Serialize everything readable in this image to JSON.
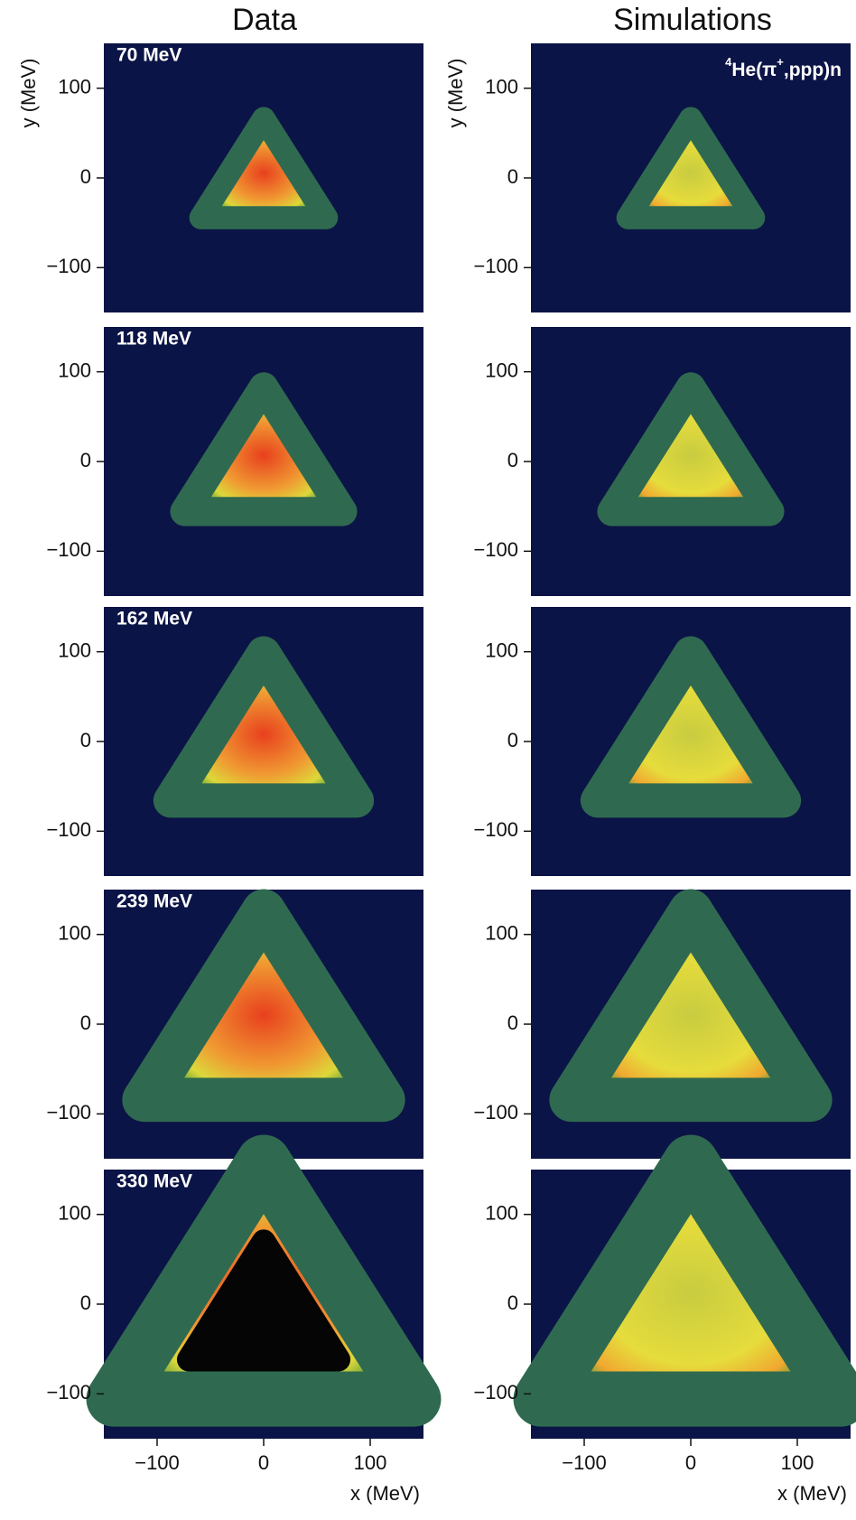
{
  "columns": [
    "Data",
    "Simulations"
  ],
  "chart_data": [
    {
      "type": "heatmap",
      "title": "70 MeV",
      "ylabel": "y (MeV)",
      "xlim": [
        -150,
        150
      ],
      "ylim": [
        -150,
        150
      ],
      "yticks": [
        {
          "value": -100,
          "label": "−100"
        },
        0,
        100
      ]
    },
    {
      "type": "heatmap",
      "annotation": [
        "4",
        "He(π",
        "+",
        ",ppp)n"
      ],
      "ylabel": "y (MeV)",
      "xlim": [
        -150,
        150
      ],
      "ylim": [
        -150,
        150
      ],
      "yticks": [
        {
          "value": -100,
          "label": "−100"
        },
        0,
        100
      ]
    },
    {
      "type": "heatmap",
      "title": "118 MeV",
      "xlim": [
        -150,
        150
      ],
      "ylim": [
        -150,
        150
      ],
      "yticks": [
        {
          "value": -100,
          "label": "−100"
        },
        0,
        100
      ]
    },
    {
      "type": "heatmap",
      "xlim": [
        -150,
        150
      ],
      "ylim": [
        -150,
        150
      ],
      "yticks": [
        {
          "value": -100,
          "label": "−100"
        },
        0,
        100
      ]
    },
    {
      "type": "heatmap",
      "title": "162 MeV",
      "xlim": [
        -150,
        150
      ],
      "ylim": [
        -150,
        150
      ],
      "yticks": [
        {
          "value": -100,
          "label": "−100"
        },
        0,
        100
      ]
    },
    {
      "type": "heatmap",
      "xlim": [
        -150,
        150
      ],
      "ylim": [
        -150,
        150
      ],
      "yticks": [
        {
          "value": -100,
          "label": "−100"
        },
        0,
        100
      ]
    },
    {
      "type": "heatmap",
      "title": "239 MeV",
      "xlim": [
        -150,
        150
      ],
      "ylim": [
        -150,
        150
      ],
      "yticks": [
        {
          "value": -100,
          "label": "−100"
        },
        0,
        100
      ]
    },
    {
      "type": "heatmap",
      "xlim": [
        -150,
        150
      ],
      "ylim": [
        -150,
        150
      ],
      "yticks": [
        {
          "value": -100,
          "label": "−100"
        },
        0,
        100
      ]
    },
    {
      "type": "heatmap",
      "title": "330 MeV",
      "xlabel": "x (MeV)",
      "xlim": [
        -150,
        150
      ],
      "ylim": [
        -150,
        150
      ],
      "yticks": [
        {
          "value": -100,
          "label": "−100"
        },
        0,
        100
      ],
      "xticks": [
        {
          "value": -100,
          "label": "−100"
        },
        0,
        100
      ]
    },
    {
      "type": "heatmap",
      "xlabel": "x (MeV)",
      "xlim": [
        -150,
        150
      ],
      "ylim": [
        -150,
        150
      ],
      "yticks": [
        {
          "value": -100,
          "label": "−100"
        },
        0,
        100
      ],
      "xticks": [
        {
          "value": -100,
          "label": "−100"
        },
        0,
        100
      ]
    }
  ]
}
